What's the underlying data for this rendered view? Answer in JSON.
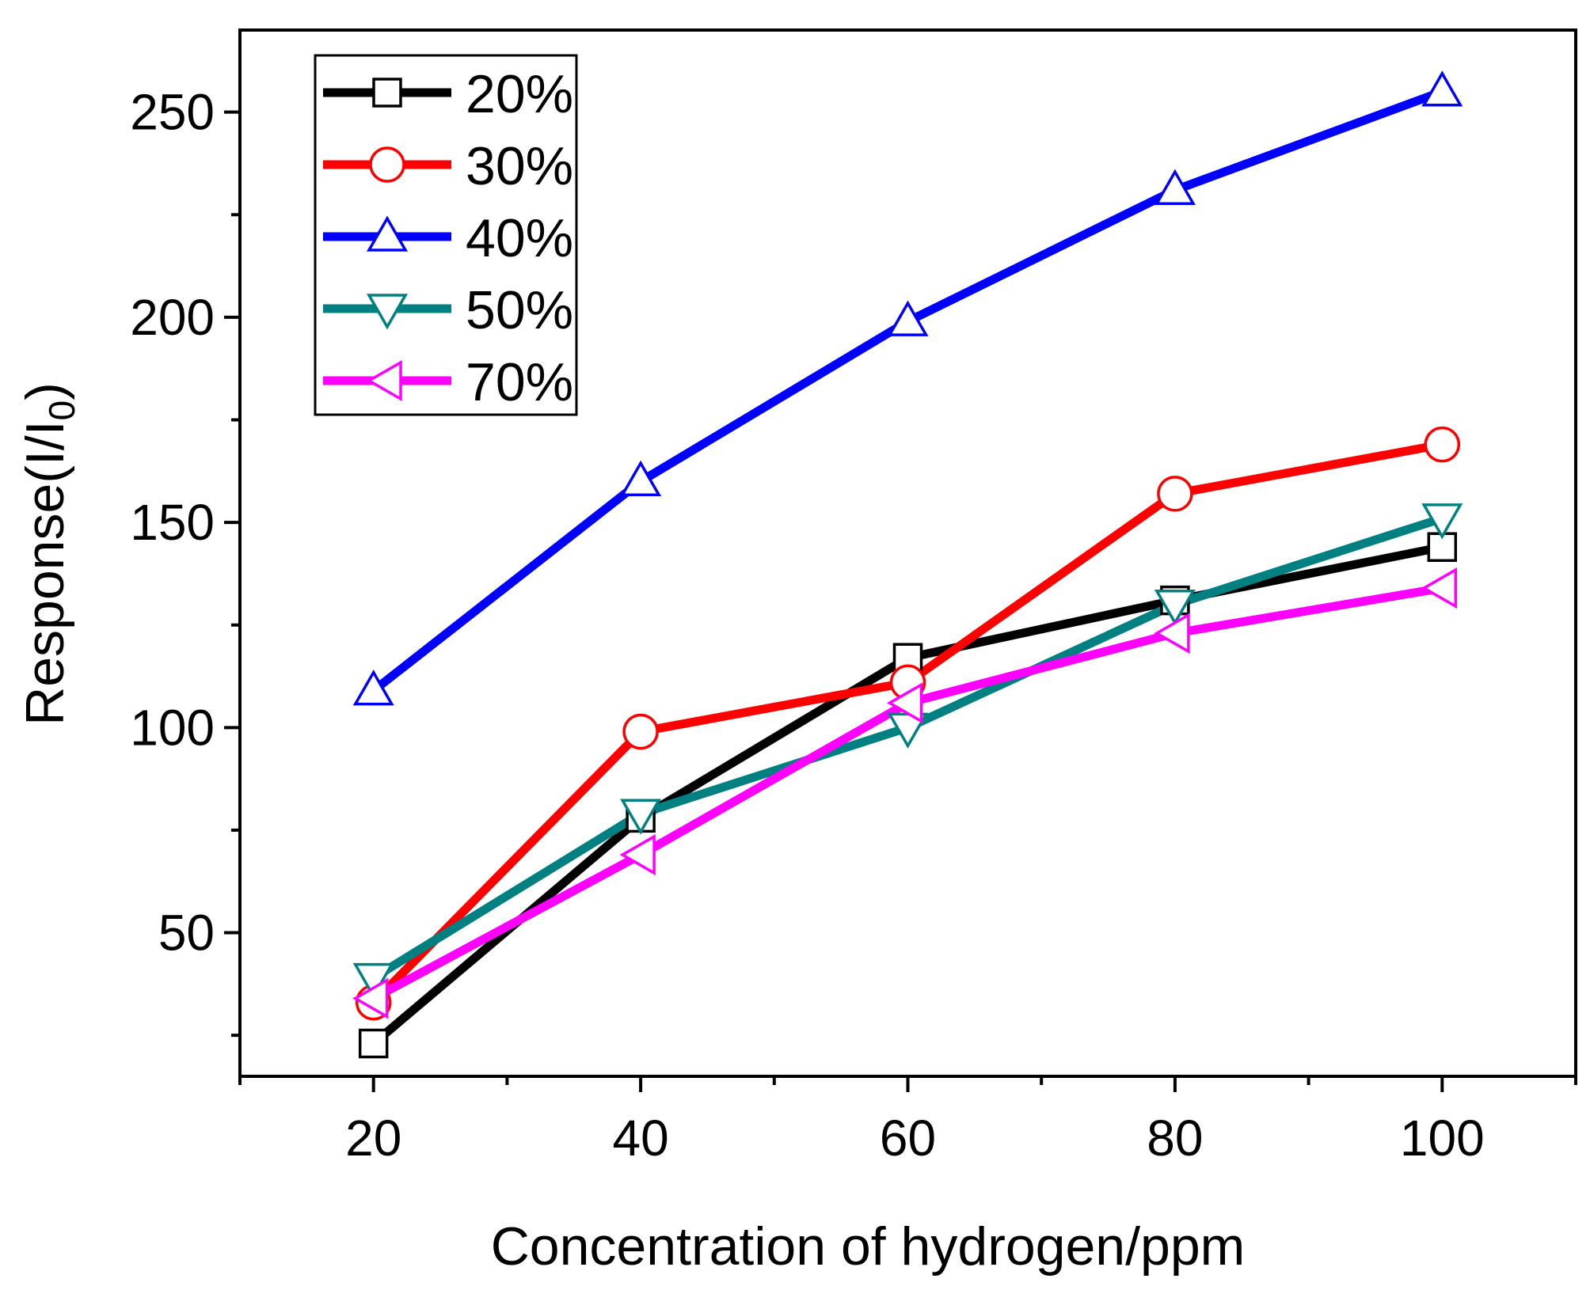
{
  "chart_data": {
    "type": "line",
    "title": "",
    "xlabel": "Concentration of hydrogen/ppm",
    "ylabel_main": "Response(I/I",
    "ylabel_sub": "0",
    "ylabel_close": ")",
    "x": [
      20,
      40,
      60,
      80,
      100
    ],
    "xlim": [
      10,
      110
    ],
    "ylim": [
      15,
      270
    ],
    "xticks": [
      "20",
      "40",
      "60",
      "80",
      "100"
    ],
    "xtick_values": [
      20,
      40,
      60,
      80,
      100
    ],
    "xminor": [
      10,
      30,
      50,
      70,
      90,
      110
    ],
    "yticks": [
      "50",
      "100",
      "150",
      "200",
      "250"
    ],
    "ytick_values": [
      50,
      100,
      150,
      200,
      250
    ],
    "yminor": [
      25,
      75,
      125,
      175,
      225
    ],
    "grid": false,
    "legend_position": "top-left",
    "series": [
      {
        "name": "20%",
        "color": "#000000",
        "marker": "square",
        "values": [
          23,
          78,
          117,
          131,
          144
        ]
      },
      {
        "name": "30%",
        "color": "#ff0000",
        "marker": "circle",
        "values": [
          33,
          99,
          111,
          157,
          169
        ]
      },
      {
        "name": "40%",
        "color": "#0000ff",
        "marker": "triangle-up",
        "values": [
          109,
          160,
          199,
          231,
          255
        ]
      },
      {
        "name": "50%",
        "color": "#008080",
        "marker": "triangle-down",
        "values": [
          39,
          79,
          100,
          130,
          151
        ]
      },
      {
        "name": "70%",
        "color": "#ff00ff",
        "marker": "triangle-left",
        "values": [
          34,
          69,
          106,
          123,
          134
        ]
      }
    ]
  }
}
